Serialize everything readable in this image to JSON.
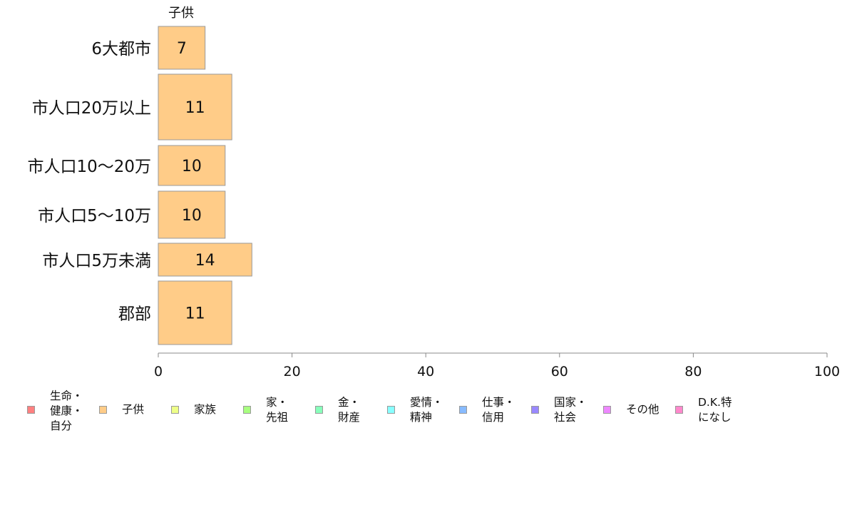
{
  "chart_data": {
    "type": "bar",
    "orientation": "horizontal",
    "series_label": "子供",
    "categories": [
      "6大都市",
      "市人口20万以上",
      "市人口10～20万",
      "市人口5～10万",
      "市人口5万未満",
      "郡部"
    ],
    "values": [
      7,
      11,
      10,
      10,
      14,
      11
    ],
    "xlim": [
      0,
      100
    ],
    "xticks": [
      0,
      20,
      40,
      60,
      80,
      100
    ],
    "bar_color": "#ffcc88",
    "bar_stroke": "#999999",
    "grid": false,
    "legend_position": "bottom",
    "legend": [
      {
        "label": "生命・\n健康・\n自分",
        "color": "#ff8080"
      },
      {
        "label": "子供",
        "color": "#ffcc88"
      },
      {
        "label": "家族",
        "color": "#eeff88"
      },
      {
        "label": "家・\n先祖",
        "color": "#a8ff80"
      },
      {
        "label": "金・\n財産",
        "color": "#88ffbb"
      },
      {
        "label": "愛情・\n精神",
        "color": "#88ffff"
      },
      {
        "label": "仕事・\n信用",
        "color": "#88bbff"
      },
      {
        "label": "国家・\n社会",
        "color": "#9988ff"
      },
      {
        "label": "その他",
        "color": "#ee88ff"
      },
      {
        "label": "D.K.特\nになし",
        "color": "#ff88cc"
      }
    ]
  }
}
